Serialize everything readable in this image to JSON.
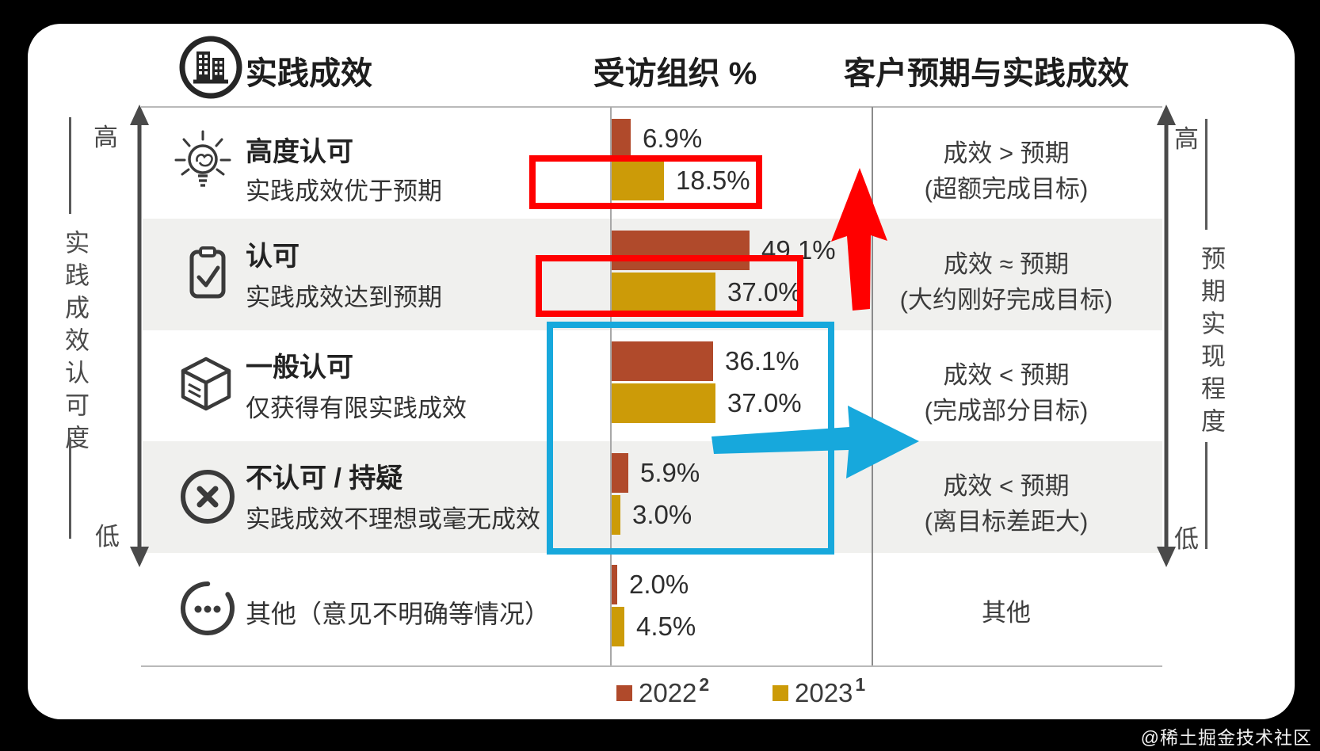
{
  "header": {
    "col_practice": "实践成效",
    "col_percent": "受访组织 %",
    "col_expectation": "客户预期与实践成效"
  },
  "left_axis": {
    "label": "实践成效认可度",
    "high": "高",
    "low": "低"
  },
  "right_axis": {
    "label": "预期实现程度",
    "high": "高",
    "low": "低"
  },
  "rows": [
    {
      "icon": "idea-lightbulb-icon",
      "title": "高度认可",
      "subtitle": "实践成效优于预期",
      "v2022": "6.9%",
      "v2023": "18.5%",
      "expect_line1": "成效 > 预期",
      "expect_line2": "(超额完成目标)"
    },
    {
      "icon": "clipboard-check-icon",
      "title": "认可",
      "subtitle": "实践成效达到预期",
      "v2022": "49.1%",
      "v2023": "37.0%",
      "expect_line1": "成效 ≈ 预期",
      "expect_line2": "(大约刚好完成目标)"
    },
    {
      "icon": "cube-icon",
      "title": "一般认可",
      "subtitle": "仅获得有限实践成效",
      "v2022": "36.1%",
      "v2023": "37.0%",
      "expect_line1": "成效 < 预期",
      "expect_line2": "(完成部分目标)"
    },
    {
      "icon": "circle-x-icon",
      "title": "不认可 / 持疑",
      "subtitle": "实践成效不理想或毫无成效",
      "v2022": "5.9%",
      "v2023": "3.0%",
      "expect_line1": "成效 < 预期",
      "expect_line2": "(离目标差距大)"
    },
    {
      "icon": "circle-ellipsis-icon",
      "title": "其他（意见不明确等情况）",
      "subtitle": "",
      "v2022": "2.0%",
      "v2023": "4.5%",
      "expect_line1": "其他",
      "expect_line2": ""
    }
  ],
  "legend": {
    "label_2022": "2022",
    "sup_2022": "2",
    "label_2023": "2023",
    "sup_2023": "1"
  },
  "watermark": "@稀土掘金技术社区",
  "colors": {
    "bar_2022": "#B04A2B",
    "bar_2023": "#CC9B08",
    "highlight_red": "#FF0000",
    "highlight_blue": "#17A8DC",
    "band_gray": "#F0F0EE"
  },
  "chart_data": {
    "type": "bar",
    "orientation": "horizontal",
    "title": "实践成效 — 受访组织 %",
    "categories": [
      "高度认可",
      "认可",
      "一般认可",
      "不认可 / 持疑",
      "其他（意见不明确等情况）"
    ],
    "series": [
      {
        "name": "2022",
        "values": [
          6.9,
          49.1,
          36.1,
          5.9,
          2.0
        ]
      },
      {
        "name": "2023",
        "values": [
          18.5,
          37.0,
          37.0,
          3.0,
          4.5
        ]
      }
    ],
    "xlabel": "受访组织 %",
    "ylabel": "实践成效认可度 (高→低)",
    "xlim": [
      0,
      55
    ],
    "grid": false,
    "legend_position": "bottom",
    "annotations": [
      "红框: 2023年 18.5% 与 37.0% (成效≥预期上升)",
      "蓝框: 一般认可 与 不认可/持疑 (成效<预期)",
      "红色上箭头, 蓝色右箭头"
    ]
  }
}
